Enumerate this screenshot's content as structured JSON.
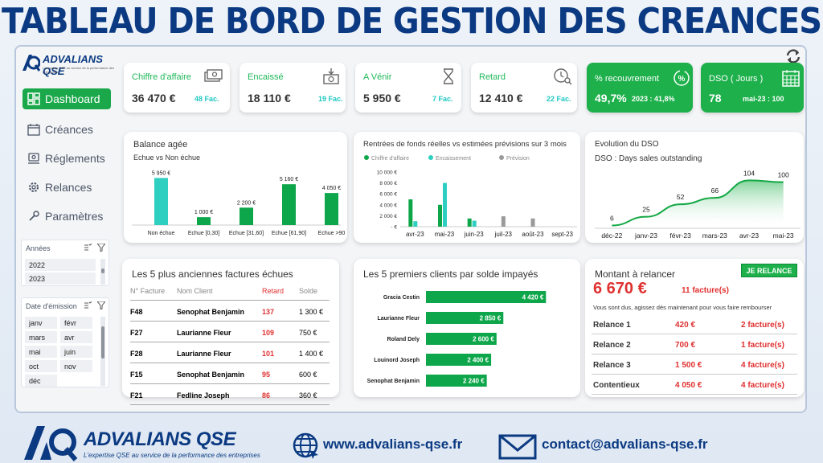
{
  "banner": {
    "title": "TABLEAU DE BORD DE GESTION DES CREANCES"
  },
  "app": {
    "brand": "ADVALIANS QSE",
    "tagline": "L'expertise QSE au service de la performance des entreprises"
  },
  "nav": [
    {
      "label": "Dashboard",
      "icon": "dashboard-icon",
      "active": true
    },
    {
      "label": "Créances",
      "icon": "calendar-icon"
    },
    {
      "label": "Réglements",
      "icon": "payment-icon"
    },
    {
      "label": "Relances",
      "icon": "gear-icon"
    },
    {
      "label": "Paramètres",
      "icon": "settings-icon"
    }
  ],
  "filters": {
    "years": {
      "title": "Années",
      "items": [
        "2022",
        "2023"
      ]
    },
    "dates": {
      "title": "Date d'émission",
      "items": [
        "janv",
        "févr",
        "mars",
        "avr",
        "mai",
        "juin",
        "oct",
        "nov",
        "déc"
      ]
    }
  },
  "kpis": [
    {
      "title": "Chiffre d'affaire",
      "value": "36 470 €",
      "sub": "48 Fac.",
      "icon": "money-icon"
    },
    {
      "title": "Encaissé",
      "value": "18 110 €",
      "sub": "19 Fac.",
      "icon": "cash-register-icon"
    },
    {
      "title": "A Vénir",
      "value": "5 950 €",
      "sub": "7 Fac.",
      "icon": "hourglass-icon"
    },
    {
      "title": "Retard",
      "value": "12 410 €",
      "sub": "22 Fac.",
      "icon": "clock-search-icon"
    },
    {
      "title": "% recouvrement",
      "value": "49,7%",
      "sub": "2023 : 41,8%",
      "icon": "percent-icon"
    },
    {
      "title": "DSO ( Jours )",
      "value": "78",
      "sub": "mai-23 : 100",
      "icon": "calendar-grid-icon"
    }
  ],
  "colors": {
    "green": "#1db04b",
    "dark_green": "#0ea64a",
    "cyan": "#2ecfc0",
    "grey": "#9a9a9a",
    "red": "#e03030",
    "navy": "#0b3a82"
  },
  "balance": {
    "title": "Balance agée",
    "subtitle": "Echue vs Non échue",
    "chart_data": {
      "type": "bar",
      "categories": [
        "Non échue",
        "Echue [0,30]",
        "Echue [31,60]",
        "Echue [61,90]",
        "Echue >90"
      ],
      "values": [
        5950,
        1000,
        2200,
        5160,
        4050
      ],
      "labels": [
        "5 950 €",
        "1 000 €",
        "2 200 €",
        "5 160 €",
        "4 050 €"
      ],
      "ylim": [
        0,
        6500
      ]
    }
  },
  "rentrees": {
    "title": "Rentrées de fonds réelles vs estimées prévisions sur 3 mois",
    "legend": [
      "Chiffre d'affaire",
      "Encaissement",
      "Prévision"
    ],
    "chart_data": {
      "type": "bar",
      "categories": [
        "avr-23",
        "mai-23",
        "juin-23",
        "juil-23",
        "août-23",
        "sept-23"
      ],
      "series": [
        {
          "name": "Chiffre d'affaire",
          "values": [
            5000,
            4000,
            1500,
            0,
            0,
            0
          ]
        },
        {
          "name": "Encaissement",
          "values": [
            1000,
            8000,
            1100,
            0,
            0,
            0
          ]
        },
        {
          "name": "Prévision",
          "values": [
            0,
            0,
            0,
            1900,
            1500,
            0
          ]
        }
      ],
      "yticks": [
        "10 000 €",
        "8 000 €",
        "6 000 €",
        "4 000 €",
        "2 000 €",
        "- €"
      ],
      "ylim": [
        0,
        10000
      ]
    }
  },
  "dso": {
    "title": "Evolution du DSO",
    "subtitle": "DSO : Days sales outstanding",
    "chart_data": {
      "type": "area",
      "categories": [
        "déc-22",
        "janv-23",
        "févr-23",
        "mars-23",
        "avr-23",
        "mai-23"
      ],
      "values": [
        6,
        25,
        52,
        66,
        104,
        100
      ],
      "ylim": [
        0,
        115
      ]
    }
  },
  "oldest": {
    "title": "Les 5 plus anciennes factures échues",
    "headers": [
      "N° Facture",
      "Nom Client",
      "Retard",
      "Solde"
    ],
    "rows": [
      [
        "F48",
        "Senophat Benjamin",
        "137",
        "1 300 €"
      ],
      [
        "F27",
        "Laurianne Fleur",
        "109",
        "750 €"
      ],
      [
        "F28",
        "Laurianne Fleur",
        "101",
        "1 400 €"
      ],
      [
        "F15",
        "Senophat Benjamin",
        "95",
        "600 €"
      ],
      [
        "F21",
        "Fedline Joseph",
        "86",
        "360 €"
      ]
    ]
  },
  "clients": {
    "title": "Les 5 premiers clients par solde impayés",
    "chart_data": {
      "type": "bar",
      "categories": [
        "Gracia Cestin",
        "Laurianne Fleur",
        "Roland Dely",
        "Louinord Joseph",
        "Senophat Benjamin"
      ],
      "values": [
        4420,
        2850,
        2600,
        2400,
        2240
      ],
      "labels": [
        "4 420 €",
        "2 850 €",
        "2 600 €",
        "2 400 €",
        "2 240 €"
      ],
      "xlim": [
        0,
        4500
      ]
    }
  },
  "relancer": {
    "title": "Montant à relancer",
    "button": "JE RELANCE",
    "amount": "6 670 €",
    "count": "11 facture(s)",
    "message": "Vous sont dus, agissez dès maintenant pour vous faire rembourser",
    "rows": [
      [
        "Relance 1",
        "420 €",
        "2 facture(s)"
      ],
      [
        "Relance 2",
        "700 €",
        "1 facture(s)"
      ],
      [
        "Relance 3",
        "1 500 €",
        "4 facture(s)"
      ],
      [
        "Contentieux",
        "4 050 €",
        "4 facture(s)"
      ]
    ]
  },
  "footer": {
    "brand": "ADVALIANS QSE",
    "tagline": "L'expertise QSE au service de la performance des entreprises",
    "website": "www.advalians-qse.fr",
    "email": "contact@advalians-qse.fr"
  }
}
